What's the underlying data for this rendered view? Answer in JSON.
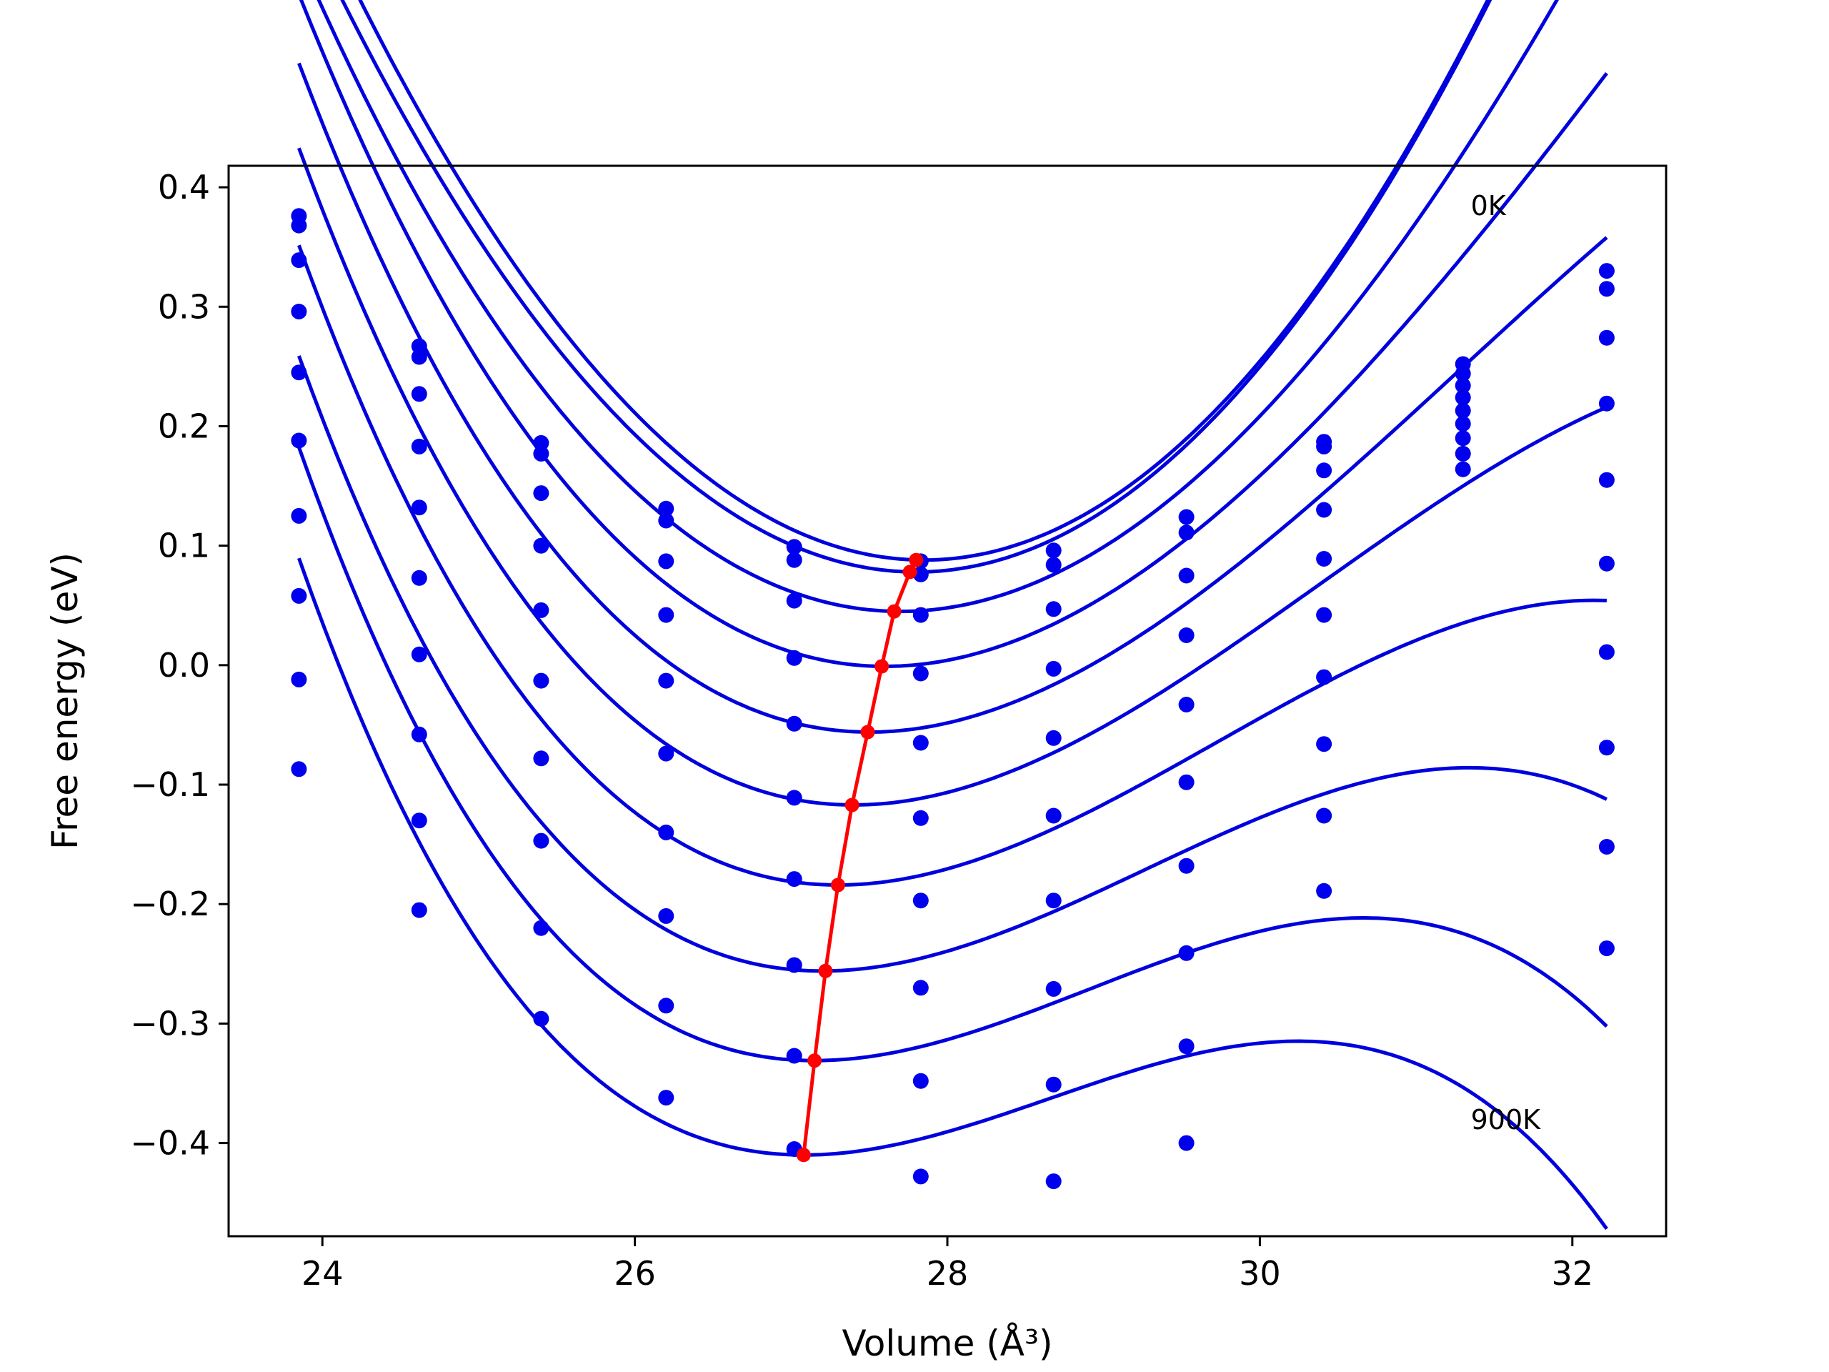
{
  "chart_data": {
    "type": "scatter",
    "xlabel": "Volume (Å³)",
    "ylabel": "Free energy (eV)",
    "xlim": [
      23.4,
      32.6
    ],
    "ylim": [
      -0.478,
      0.418
    ],
    "x_ticks": [
      24,
      26,
      28,
      30,
      32
    ],
    "x_tick_labels": [
      "24",
      "26",
      "28",
      "30",
      "32"
    ],
    "y_ticks": [
      0.4,
      0.3,
      0.2,
      0.1,
      0.0,
      -0.1,
      -0.2,
      -0.3,
      -0.4
    ],
    "y_tick_labels": [
      "0.4",
      "0.3",
      "0.2",
      "0.1",
      "0.0",
      "−0.1",
      "−0.2",
      "−0.3",
      "−0.4"
    ],
    "grid": false,
    "annotations": [
      {
        "text": "0K",
        "x": 31.35,
        "y": 0.385
      },
      {
        "text": "900K",
        "x": 31.35,
        "y": -0.38
      }
    ],
    "colors": {
      "fit": "#0000dd",
      "points": "#0000ee",
      "minima": "#ff0000"
    },
    "curve_x_range": [
      23.85,
      32.22
    ],
    "volumes": [
      23.85,
      24.62,
      25.4,
      26.2,
      27.02,
      27.83,
      28.68,
      29.53,
      30.41,
      31.3,
      32.22
    ],
    "fit_curves": [
      {
        "vmin": 27.85,
        "fmin": 0.088,
        "k": 0.036,
        "a": 0.0
      },
      {
        "vmin": 27.8,
        "fmin": 0.078,
        "k": 0.0355,
        "a": 0.0
      },
      {
        "vmin": 27.7,
        "fmin": 0.045,
        "k": 0.0332,
        "a": -0.001
      },
      {
        "vmin": 27.6,
        "fmin": -0.001,
        "k": 0.0325,
        "a": -0.002
      },
      {
        "vmin": 27.5,
        "fmin": -0.056,
        "k": 0.0318,
        "a": -0.0028
      },
      {
        "vmin": 27.4,
        "fmin": -0.117,
        "k": 0.0312,
        "a": -0.0035
      },
      {
        "vmin": 27.3,
        "fmin": -0.184,
        "k": 0.0305,
        "a": -0.0042
      },
      {
        "vmin": 27.2,
        "fmin": -0.256,
        "k": 0.0298,
        "a": -0.0048
      },
      {
        "vmin": 27.15,
        "fmin": -0.331,
        "k": 0.029,
        "a": -0.0055
      },
      {
        "vmin": 27.08,
        "fmin": -0.41,
        "k": 0.0285,
        "a": -0.006
      }
    ],
    "points": [
      {
        "x": 23.85,
        "y": 0.376
      },
      {
        "x": 23.85,
        "y": 0.368
      },
      {
        "x": 23.85,
        "y": 0.339
      },
      {
        "x": 23.85,
        "y": 0.296
      },
      {
        "x": 23.85,
        "y": 0.245
      },
      {
        "x": 23.85,
        "y": 0.188
      },
      {
        "x": 23.85,
        "y": 0.125
      },
      {
        "x": 23.85,
        "y": 0.058
      },
      {
        "x": 23.85,
        "y": -0.012
      },
      {
        "x": 23.85,
        "y": -0.087
      },
      {
        "x": 24.62,
        "y": 0.267
      },
      {
        "x": 24.62,
        "y": 0.258
      },
      {
        "x": 24.62,
        "y": 0.227
      },
      {
        "x": 24.62,
        "y": 0.183
      },
      {
        "x": 24.62,
        "y": 0.132
      },
      {
        "x": 24.62,
        "y": 0.073
      },
      {
        "x": 24.62,
        "y": 0.009
      },
      {
        "x": 24.62,
        "y": -0.058
      },
      {
        "x": 24.62,
        "y": -0.13
      },
      {
        "x": 24.62,
        "y": -0.205
      },
      {
        "x": 25.4,
        "y": 0.186
      },
      {
        "x": 25.4,
        "y": 0.177
      },
      {
        "x": 25.4,
        "y": 0.144
      },
      {
        "x": 25.4,
        "y": 0.1
      },
      {
        "x": 25.4,
        "y": 0.046
      },
      {
        "x": 25.4,
        "y": -0.013
      },
      {
        "x": 25.4,
        "y": -0.078
      },
      {
        "x": 25.4,
        "y": -0.147
      },
      {
        "x": 25.4,
        "y": -0.22
      },
      {
        "x": 25.4,
        "y": -0.296
      },
      {
        "x": 26.2,
        "y": 0.131
      },
      {
        "x": 26.2,
        "y": 0.121
      },
      {
        "x": 26.2,
        "y": 0.087
      },
      {
        "x": 26.2,
        "y": 0.042
      },
      {
        "x": 26.2,
        "y": -0.013
      },
      {
        "x": 26.2,
        "y": -0.074
      },
      {
        "x": 26.2,
        "y": -0.14
      },
      {
        "x": 26.2,
        "y": -0.21
      },
      {
        "x": 26.2,
        "y": -0.285
      },
      {
        "x": 26.2,
        "y": -0.362
      },
      {
        "x": 27.02,
        "y": 0.099
      },
      {
        "x": 27.02,
        "y": 0.088
      },
      {
        "x": 27.02,
        "y": 0.054
      },
      {
        "x": 27.02,
        "y": 0.006
      },
      {
        "x": 27.02,
        "y": -0.049
      },
      {
        "x": 27.02,
        "y": -0.111
      },
      {
        "x": 27.02,
        "y": -0.179
      },
      {
        "x": 27.02,
        "y": -0.251
      },
      {
        "x": 27.02,
        "y": -0.327
      },
      {
        "x": 27.02,
        "y": -0.405
      },
      {
        "x": 27.83,
        "y": 0.087
      },
      {
        "x": 27.83,
        "y": 0.076
      },
      {
        "x": 27.83,
        "y": 0.042
      },
      {
        "x": 27.83,
        "y": -0.007
      },
      {
        "x": 27.83,
        "y": -0.065
      },
      {
        "x": 27.83,
        "y": -0.128
      },
      {
        "x": 27.83,
        "y": -0.197
      },
      {
        "x": 27.83,
        "y": -0.27
      },
      {
        "x": 27.83,
        "y": -0.348
      },
      {
        "x": 27.83,
        "y": -0.428
      },
      {
        "x": 28.68,
        "y": 0.096
      },
      {
        "x": 28.68,
        "y": 0.084
      },
      {
        "x": 28.68,
        "y": 0.047
      },
      {
        "x": 28.68,
        "y": -0.003
      },
      {
        "x": 28.68,
        "y": -0.061
      },
      {
        "x": 28.68,
        "y": -0.126
      },
      {
        "x": 28.68,
        "y": -0.197
      },
      {
        "x": 28.68,
        "y": -0.271
      },
      {
        "x": 28.68,
        "y": -0.351
      },
      {
        "x": 28.68,
        "y": -0.432
      },
      {
        "x": 29.53,
        "y": 0.124
      },
      {
        "x": 29.53,
        "y": 0.111
      },
      {
        "x": 29.53,
        "y": 0.075
      },
      {
        "x": 29.53,
        "y": 0.025
      },
      {
        "x": 29.53,
        "y": -0.033
      },
      {
        "x": 29.53,
        "y": -0.098
      },
      {
        "x": 29.53,
        "y": -0.168
      },
      {
        "x": 29.53,
        "y": -0.241
      },
      {
        "x": 29.53,
        "y": -0.319
      },
      {
        "x": 29.53,
        "y": -0.4
      },
      {
        "x": 30.41,
        "y": 0.187
      },
      {
        "x": 30.41,
        "y": 0.183
      },
      {
        "x": 30.41,
        "y": 0.163
      },
      {
        "x": 30.41,
        "y": 0.13
      },
      {
        "x": 30.41,
        "y": 0.089
      },
      {
        "x": 30.41,
        "y": 0.042
      },
      {
        "x": 30.41,
        "y": -0.01
      },
      {
        "x": 30.41,
        "y": -0.066
      },
      {
        "x": 30.41,
        "y": -0.126
      },
      {
        "x": 30.41,
        "y": -0.189
      },
      {
        "x": 31.3,
        "y": 0.252
      },
      {
        "x": 31.3,
        "y": 0.244
      },
      {
        "x": 31.3,
        "y": 0.234
      },
      {
        "x": 31.3,
        "y": 0.224
      },
      {
        "x": 31.3,
        "y": 0.213
      },
      {
        "x": 31.3,
        "y": 0.202
      },
      {
        "x": 31.3,
        "y": 0.19
      },
      {
        "x": 31.3,
        "y": 0.177
      },
      {
        "x": 31.3,
        "y": 0.164
      },
      {
        "x": 32.22,
        "y": 0.33
      },
      {
        "x": 32.22,
        "y": 0.315
      },
      {
        "x": 32.22,
        "y": 0.274
      },
      {
        "x": 32.22,
        "y": 0.219
      },
      {
        "x": 32.22,
        "y": 0.155
      },
      {
        "x": 32.22,
        "y": 0.085
      },
      {
        "x": 32.22,
        "y": 0.011
      },
      {
        "x": 32.22,
        "y": -0.069
      },
      {
        "x": 32.22,
        "y": -0.152
      },
      {
        "x": 32.22,
        "y": -0.237
      }
    ],
    "minima_line": {
      "x": [
        27.8,
        27.76,
        27.66,
        27.58,
        27.49,
        27.39,
        27.3,
        27.22,
        27.15,
        27.08
      ],
      "y": [
        0.088,
        0.078,
        0.045,
        -0.001,
        -0.056,
        -0.117,
        -0.184,
        -0.256,
        -0.331,
        -0.41
      ]
    }
  }
}
